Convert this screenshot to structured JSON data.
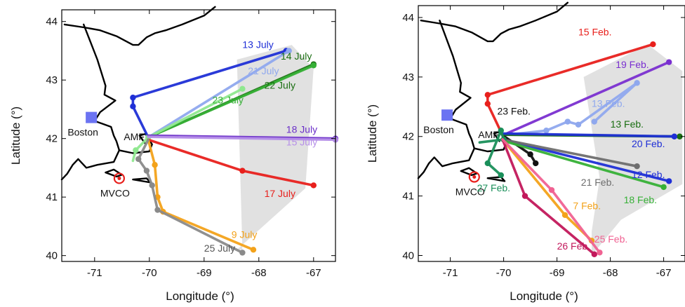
{
  "chart_data": [
    {
      "type": "line",
      "xlabel": "Longitude (°)",
      "ylabel": "Latitude (°)",
      "xlim": [
        -71.6,
        -66.6
      ],
      "ylim": [
        39.9,
        44.2
      ],
      "xticks": [
        "-71",
        "-70",
        "-69",
        "-68",
        "-67"
      ],
      "yticks": [
        "40",
        "41",
        "42",
        "43",
        "44"
      ],
      "grid": false,
      "places": {
        "boston": {
          "label": "Boston",
          "lon": -71.06,
          "lat": 42.36
        },
        "amf": {
          "label": "AMF",
          "lon": -70.05,
          "lat": 42.02
        },
        "mvco": {
          "label": "MVCO",
          "lon": -70.55,
          "lat": 41.32
        }
      },
      "shaded_region": [
        [
          -68.3,
          40.1
        ],
        [
          -68.4,
          43.35
        ],
        [
          -67.4,
          43.6
        ],
        [
          -67.0,
          43.2
        ],
        [
          -67.15,
          41.15
        ],
        [
          -68.4,
          40.1
        ]
      ],
      "coastline": [
        [
          [
            -71.55,
            43.95
          ],
          [
            -71.2,
            43.9
          ],
          [
            -70.9,
            43.85
          ],
          [
            -70.6,
            43.75
          ],
          [
            -70.3,
            43.6
          ],
          [
            -70.2,
            43.6
          ],
          [
            -70.05,
            43.73
          ],
          [
            -69.9,
            43.8
          ],
          [
            -69.7,
            43.85
          ],
          [
            -69.4,
            43.95
          ],
          [
            -69.0,
            44.1
          ],
          [
            -68.8,
            44.25
          ]
        ],
        [
          [
            -71.2,
            43.95
          ],
          [
            -70.95,
            43.35
          ],
          [
            -70.85,
            43.05
          ],
          [
            -70.8,
            42.9
          ],
          [
            -70.82,
            42.75
          ],
          [
            -70.62,
            42.65
          ],
          [
            -70.9,
            42.45
          ],
          [
            -71.0,
            42.3
          ],
          [
            -70.85,
            42.25
          ],
          [
            -70.7,
            42.2
          ],
          [
            -70.65,
            42.05
          ],
          [
            -70.6,
            41.95
          ],
          [
            -70.55,
            41.8
          ],
          [
            -70.3,
            41.75
          ],
          [
            -70.0,
            41.78
          ],
          [
            -69.95,
            41.9
          ],
          [
            -70.07,
            42.08
          ],
          [
            -70.18,
            42.05
          ],
          [
            -70.08,
            41.92
          ]
        ],
        [
          [
            -70.55,
            41.8
          ],
          [
            -70.65,
            41.6
          ],
          [
            -70.95,
            41.55
          ],
          [
            -71.15,
            41.5
          ],
          [
            -71.3,
            41.65
          ],
          [
            -71.4,
            41.55
          ],
          [
            -71.5,
            41.4
          ],
          [
            -71.6,
            41.3
          ]
        ],
        [
          [
            -70.8,
            41.42
          ],
          [
            -70.65,
            41.47
          ],
          [
            -70.5,
            41.38
          ],
          [
            -70.6,
            41.35
          ],
          [
            -70.8,
            41.42
          ]
        ],
        [
          [
            -70.3,
            41.3
          ],
          [
            -69.98,
            41.25
          ],
          [
            -70.05,
            41.32
          ],
          [
            -70.3,
            41.3
          ]
        ]
      ],
      "series": [
        {
          "name": "13 July",
          "color": "#1f2fd6",
          "x": [
            -70.02,
            -70.3,
            -70.3,
            -67.5
          ],
          "y": [
            42.02,
            42.55,
            42.7,
            43.5
          ]
        },
        {
          "name": "14 July",
          "color": "#1a6e12",
          "x": [
            -70.02,
            -67.0
          ],
          "y": [
            42.02,
            43.27
          ]
        },
        {
          "name": "21 July",
          "color": "#8fa8ee",
          "x": [
            -70.02,
            -67.45
          ],
          "y": [
            42.02,
            43.5
          ]
        },
        {
          "name": "22 July",
          "color": "#36b036",
          "x": [
            -70.02,
            -67.0
          ],
          "y": [
            42.02,
            43.25
          ]
        },
        {
          "name": "23 July",
          "color": "#8fe88f",
          "x": [
            -70.3,
            -70.25,
            -70.02,
            -68.3
          ],
          "y": [
            41.62,
            41.8,
            42.02,
            42.85
          ]
        },
        {
          "name": "18 July",
          "color": "#6b2fc8",
          "x": [
            -70.02,
            -66.6
          ],
          "y": [
            42.05,
            42.0
          ]
        },
        {
          "name": "15 July",
          "color": "#b58ee8",
          "x": [
            -70.02,
            -66.6
          ],
          "y": [
            42.03,
            41.98
          ]
        },
        {
          "name": "17 July",
          "color": "#e8201c",
          "x": [
            -70.02,
            -68.3,
            -67.0
          ],
          "y": [
            41.98,
            41.45,
            41.2
          ]
        },
        {
          "name": "9 July",
          "color": "#f3a21a",
          "x": [
            -70.02,
            -69.9,
            -69.85,
            -69.75,
            -68.1
          ],
          "y": [
            41.98,
            41.55,
            41.0,
            40.75,
            40.1
          ]
        },
        {
          "name": "25 July",
          "color": "#8a8a8a",
          "x": [
            -70.02,
            -70.2,
            -70.05,
            -69.95,
            -69.85,
            -68.3
          ],
          "y": [
            41.98,
            41.65,
            41.45,
            41.2,
            40.78,
            40.05
          ]
        }
      ],
      "annotations": [
        {
          "text": "13 July",
          "color": "#1f2fd6",
          "lon": -68.3,
          "lat": 43.55
        },
        {
          "text": "14 July",
          "color": "#1a6e12",
          "lon": -67.6,
          "lat": 43.35
        },
        {
          "text": "21 July",
          "color": "#8fa8ee",
          "lon": -68.2,
          "lat": 43.1
        },
        {
          "text": "22 July",
          "color": "#1a6e12",
          "lon": -67.9,
          "lat": 42.85
        },
        {
          "text": "23 July",
          "color": "#36b036",
          "lon": -68.85,
          "lat": 42.6
        },
        {
          "text": "18 July",
          "color": "#6b2fc8",
          "lon": -67.5,
          "lat": 42.1
        },
        {
          "text": "15 July",
          "color": "#b58ee8",
          "lon": -67.5,
          "lat": 41.88
        },
        {
          "text": "17 July",
          "color": "#e8201c",
          "lon": -67.9,
          "lat": 41.0
        },
        {
          "text": "9 July",
          "color": "#f3a21a",
          "lon": -68.5,
          "lat": 40.3
        },
        {
          "text": "25 July",
          "color": "#555555",
          "lon": -69.0,
          "lat": 40.07
        }
      ]
    },
    {
      "type": "line",
      "xlabel": "Longitude (°)",
      "ylabel": "Latitude (°)",
      "xlim": [
        -71.6,
        -66.6
      ],
      "ylim": [
        39.9,
        44.2
      ],
      "xticks": [
        "-71",
        "-70",
        "-69",
        "-68",
        "-67"
      ],
      "yticks": [
        "40",
        "41",
        "42",
        "43",
        "44"
      ],
      "grid": false,
      "places": {
        "boston": {
          "label": "Boston",
          "lon": -71.06,
          "lat": 42.36
        },
        "amf": {
          "label": "AMF",
          "lon": -70.05,
          "lat": 42.02
        },
        "mvco": {
          "label": "MVCO",
          "lon": -70.55,
          "lat": 41.32
        }
      },
      "shaded_region": [
        [
          -68.35,
          40.0
        ],
        [
          -68.35,
          40.4
        ],
        [
          -68.2,
          41.3
        ],
        [
          -68.5,
          43.0
        ],
        [
          -67.3,
          43.55
        ],
        [
          -66.65,
          43.1
        ],
        [
          -66.65,
          41.2
        ],
        [
          -67.8,
          40.6
        ],
        [
          -68.35,
          40.0
        ]
      ],
      "coastline": [
        [
          [
            -71.55,
            43.95
          ],
          [
            -71.2,
            43.9
          ],
          [
            -70.9,
            43.85
          ],
          [
            -70.6,
            43.75
          ],
          [
            -70.3,
            43.6
          ],
          [
            -70.2,
            43.6
          ],
          [
            -70.05,
            43.73
          ],
          [
            -69.9,
            43.8
          ],
          [
            -69.7,
            43.85
          ],
          [
            -69.4,
            43.95
          ],
          [
            -69.0,
            44.1
          ],
          [
            -68.8,
            44.25
          ]
        ],
        [
          [
            -71.2,
            43.95
          ],
          [
            -70.95,
            43.35
          ],
          [
            -70.85,
            43.05
          ],
          [
            -70.8,
            42.9
          ],
          [
            -70.82,
            42.75
          ],
          [
            -70.62,
            42.65
          ],
          [
            -70.9,
            42.45
          ],
          [
            -71.0,
            42.3
          ],
          [
            -70.85,
            42.25
          ],
          [
            -70.7,
            42.2
          ],
          [
            -70.65,
            42.05
          ],
          [
            -70.6,
            41.95
          ],
          [
            -70.55,
            41.8
          ],
          [
            -70.3,
            41.75
          ],
          [
            -70.0,
            41.78
          ],
          [
            -69.95,
            41.9
          ],
          [
            -70.07,
            42.08
          ],
          [
            -70.18,
            42.05
          ],
          [
            -70.08,
            41.92
          ]
        ],
        [
          [
            -70.55,
            41.8
          ],
          [
            -70.65,
            41.6
          ],
          [
            -70.95,
            41.55
          ],
          [
            -71.15,
            41.5
          ],
          [
            -71.3,
            41.65
          ],
          [
            -71.4,
            41.55
          ],
          [
            -71.5,
            41.4
          ],
          [
            -71.6,
            41.3
          ]
        ],
        [
          [
            -70.8,
            41.42
          ],
          [
            -70.65,
            41.47
          ],
          [
            -70.5,
            41.38
          ],
          [
            -70.6,
            41.35
          ],
          [
            -70.8,
            41.42
          ]
        ],
        [
          [
            -70.3,
            41.3
          ],
          [
            -69.98,
            41.25
          ],
          [
            -70.05,
            41.32
          ],
          [
            -70.3,
            41.3
          ]
        ]
      ],
      "series": [
        {
          "name": "15 Feb.",
          "color": "#e8201c",
          "x": [
            -70.02,
            -70.3,
            -70.3,
            -67.2
          ],
          "y": [
            42.02,
            42.55,
            42.7,
            43.55
          ]
        },
        {
          "name": "19 Feb.",
          "color": "#7a2fd0",
          "x": [
            -70.02,
            -66.9
          ],
          "y": [
            42.02,
            43.25
          ]
        },
        {
          "name": "13 Feb.",
          "color": "#8fa8ee",
          "x": [
            -70.02,
            -69.2,
            -68.8,
            -68.6,
            -67.5,
            -68.3
          ],
          "y": [
            42.02,
            42.1,
            42.25,
            42.2,
            42.9,
            42.25
          ]
        },
        {
          "name": "23 Feb.",
          "color": "#111111",
          "x": [
            -70.02,
            -69.5,
            -69.4
          ],
          "y": [
            42.02,
            41.7,
            41.55
          ]
        },
        {
          "name": "13 Feb.",
          "color": "#1a6e12",
          "x": [
            -70.02,
            -66.7
          ],
          "y": [
            42.03,
            42.0
          ]
        },
        {
          "name": "20 Feb.",
          "color": "#1f2fd6",
          "x": [
            -70.02,
            -66.8
          ],
          "y": [
            42.05,
            42.0
          ]
        },
        {
          "name": "12 Feb.",
          "color": "#1f2fd6",
          "x": [
            -70.02,
            -66.9
          ],
          "y": [
            41.95,
            41.25
          ]
        },
        {
          "name": "21 Feb.",
          "color": "#6e6e6e",
          "x": [
            -70.02,
            -67.5
          ],
          "y": [
            41.95,
            41.5
          ]
        },
        {
          "name": "18 Feb.",
          "color": "#36b036",
          "x": [
            -70.02,
            -67.0
          ],
          "y": [
            41.93,
            41.15
          ]
        },
        {
          "name": "27 Feb.",
          "color": "#1a8f5a",
          "x": [
            -70.45,
            -70.0,
            -70.05,
            -70.3,
            -70.05
          ],
          "y": [
            41.9,
            41.95,
            42.1,
            41.55,
            41.35
          ]
        },
        {
          "name": "7 Feb.",
          "color": "#f3a21a",
          "x": [
            -70.02,
            -68.85,
            -68.35
          ],
          "y": [
            41.95,
            40.68,
            40.25
          ]
        },
        {
          "name": "26 Feb.",
          "color": "#c2185b",
          "x": [
            -70.02,
            -69.6,
            -68.3
          ],
          "y": [
            41.95,
            41.0,
            40.02
          ]
        },
        {
          "name": "25 Feb.",
          "color": "#f06292",
          "x": [
            -70.02,
            -69.1,
            -68.2
          ],
          "y": [
            41.95,
            41.1,
            40.05
          ]
        }
      ],
      "annotations": [
        {
          "text": "15 Feb.",
          "color": "#e8201c",
          "lon": -68.6,
          "lat": 43.7
        },
        {
          "text": "19 Feb.",
          "color": "#7a2fd0",
          "lon": -67.9,
          "lat": 43.15
        },
        {
          "text": "13 Feb.",
          "color": "#8fa8ee",
          "lon": -68.35,
          "lat": 42.5
        },
        {
          "text": "23 Feb.",
          "color": "#111111",
          "lon": -70.12,
          "lat": 42.37
        },
        {
          "text": "13 Feb.",
          "color": "#1a6e12",
          "lon": -68.0,
          "lat": 42.15
        },
        {
          "text": "20 Feb.",
          "color": "#1f2fd6",
          "lon": -67.6,
          "lat": 41.82
        },
        {
          "text": "12 Feb.",
          "color": "#1f2fd6",
          "lon": -67.6,
          "lat": 41.3
        },
        {
          "text": "21 Feb.",
          "color": "#6e6e6e",
          "lon": -68.55,
          "lat": 41.17
        },
        {
          "text": "18 Feb.",
          "color": "#36b036",
          "lon": -67.75,
          "lat": 40.88
        },
        {
          "text": "27 Feb.",
          "color": "#1a8f5a",
          "lon": -70.5,
          "lat": 41.08
        },
        {
          "text": "7 Feb.",
          "color": "#f3a21a",
          "lon": -68.7,
          "lat": 40.78
        },
        {
          "text": "26 Feb.",
          "color": "#c2185b",
          "lon": -69.0,
          "lat": 40.1
        },
        {
          "text": "25 Feb.",
          "color": "#f06292",
          "lon": -68.3,
          "lat": 40.22
        }
      ]
    }
  ]
}
